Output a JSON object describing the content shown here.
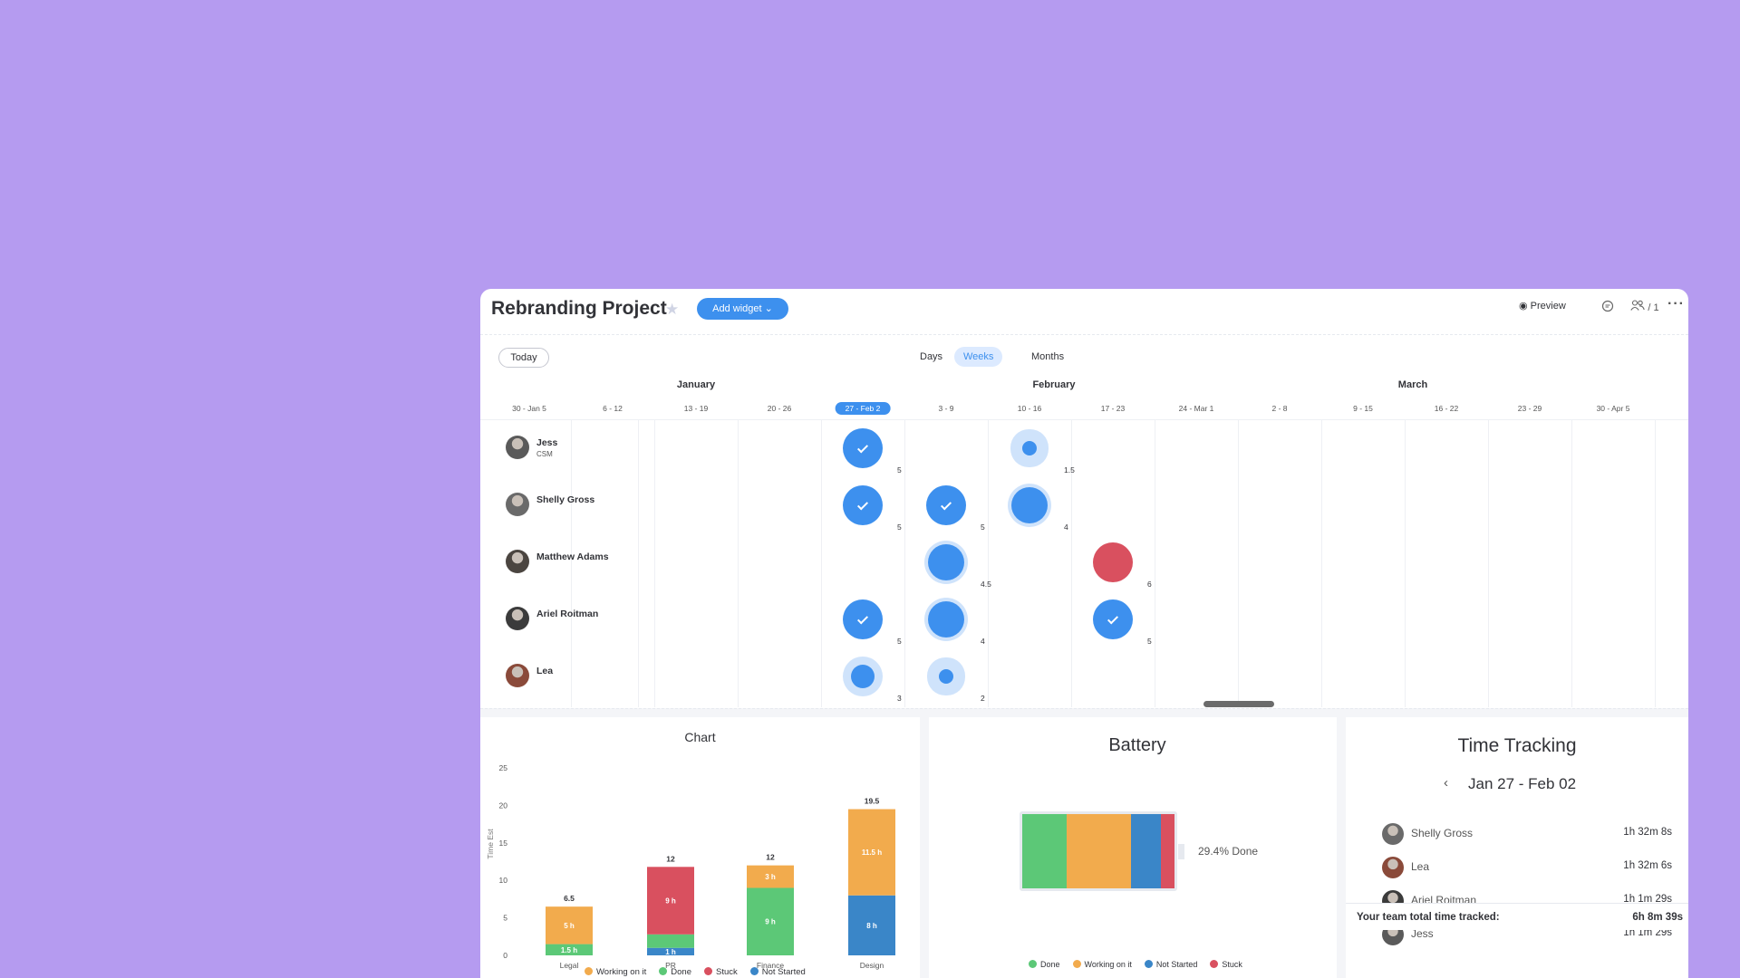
{
  "header": {
    "title": "Rebranding Project",
    "add_widget": "Add widget",
    "preview": "Preview",
    "members": "1"
  },
  "timeline": {
    "today": "Today",
    "views": [
      "Days",
      "Weeks",
      "Months"
    ],
    "active_view": "Weeks",
    "months": [
      "January",
      "February",
      "March"
    ],
    "weeks": [
      "30 - Jan 5",
      "6 - 12",
      "13 - 19",
      "20 - 26",
      "27 - Feb 2",
      "3 - 9",
      "10 - 16",
      "17 - 23",
      "24 - Mar 1",
      "2 - 8",
      "9 - 15",
      "16 - 22",
      "23 - 29",
      "30 - Apr 5"
    ],
    "current_week": "27 - Feb 2",
    "people": [
      {
        "name": "Jess",
        "role": "CSM",
        "items": [
          {
            "week": 4,
            "value": "5",
            "status": "done"
          },
          {
            "week": 6,
            "value": "1.5",
            "status": "small"
          }
        ]
      },
      {
        "name": "Shelly Gross",
        "role": "",
        "items": [
          {
            "week": 4,
            "value": "5",
            "status": "done"
          },
          {
            "week": 5,
            "value": "5",
            "status": "done"
          },
          {
            "week": 6,
            "value": "4",
            "status": "working"
          }
        ]
      },
      {
        "name": "Matthew Adams",
        "role": "",
        "items": [
          {
            "week": 5,
            "value": "4.5",
            "status": "working"
          },
          {
            "week": 7,
            "value": "6",
            "status": "stuck"
          }
        ]
      },
      {
        "name": "Ariel Roitman",
        "role": "",
        "items": [
          {
            "week": 4,
            "value": "5",
            "status": "done"
          },
          {
            "week": 5,
            "value": "4",
            "status": "working"
          },
          {
            "week": 7,
            "value": "5",
            "status": "done"
          }
        ]
      },
      {
        "name": "Lea",
        "role": "",
        "items": [
          {
            "week": 4,
            "value": "3",
            "status": "medium"
          },
          {
            "week": 5,
            "value": "2",
            "status": "small"
          }
        ]
      }
    ]
  },
  "chart_data": {
    "type": "bar",
    "title": "Chart",
    "ylabel": "Time Est",
    "ylim": [
      0,
      25
    ],
    "yticks": [
      0,
      5,
      10,
      15,
      20,
      25
    ],
    "categories": [
      "Legal",
      "PR",
      "Finance",
      "Design"
    ],
    "totals": [
      "6.5",
      "12",
      "12",
      "19.5"
    ],
    "series": [
      {
        "name": "Not Started",
        "color": "#3a86c8",
        "values": [
          0,
          1,
          0,
          8
        ],
        "labels": [
          "",
          "1 h",
          "",
          "8 h"
        ]
      },
      {
        "name": "Done",
        "color": "#5cc877",
        "values": [
          1.5,
          1.8,
          9,
          0
        ],
        "labels": [
          "1.5 h",
          "",
          "9 h",
          ""
        ]
      },
      {
        "name": "Stuck",
        "color": "#d9505f",
        "values": [
          0,
          9,
          0,
          0
        ],
        "labels": [
          "",
          "9 h",
          "",
          ""
        ]
      },
      {
        "name": "Working on it",
        "color": "#f2ab4d",
        "values": [
          5,
          0,
          3,
          11.5
        ],
        "labels": [
          "5 h",
          "",
          "3 h",
          "11.5 h"
        ]
      }
    ],
    "legend": [
      "Working on it",
      "Done",
      "Stuck",
      "Not Started"
    ]
  },
  "battery": {
    "title": "Battery",
    "done_label": "29.4% Done",
    "segments": [
      {
        "name": "Done",
        "color": "#5cc877",
        "fraction": 0.294
      },
      {
        "name": "Working on it",
        "color": "#f2ab4d",
        "fraction": 0.42
      },
      {
        "name": "Not Started",
        "color": "#3a86c8",
        "fraction": 0.195
      },
      {
        "name": "Stuck",
        "color": "#d9505f",
        "fraction": 0.091
      }
    ],
    "legend": [
      "Done",
      "Working on it",
      "Not Started",
      "Stuck"
    ]
  },
  "time_tracking": {
    "title": "Time Tracking",
    "range": "Jan 27 - Feb 02",
    "rows": [
      {
        "name": "Shelly Gross",
        "time": "1h 32m 8s"
      },
      {
        "name": "Lea",
        "time": "1h 32m 6s"
      },
      {
        "name": "Ariel Roitman",
        "time": "1h 1m 29s"
      },
      {
        "name": "Jess",
        "time": "1h 1m 29s"
      }
    ],
    "total_label": "Your team total time tracked:",
    "total": "6h 8m 39s"
  },
  "colors": {
    "status_blue": "#3d90ee",
    "status_light": "#cfe3fb",
    "stuck": "#d9505f"
  }
}
